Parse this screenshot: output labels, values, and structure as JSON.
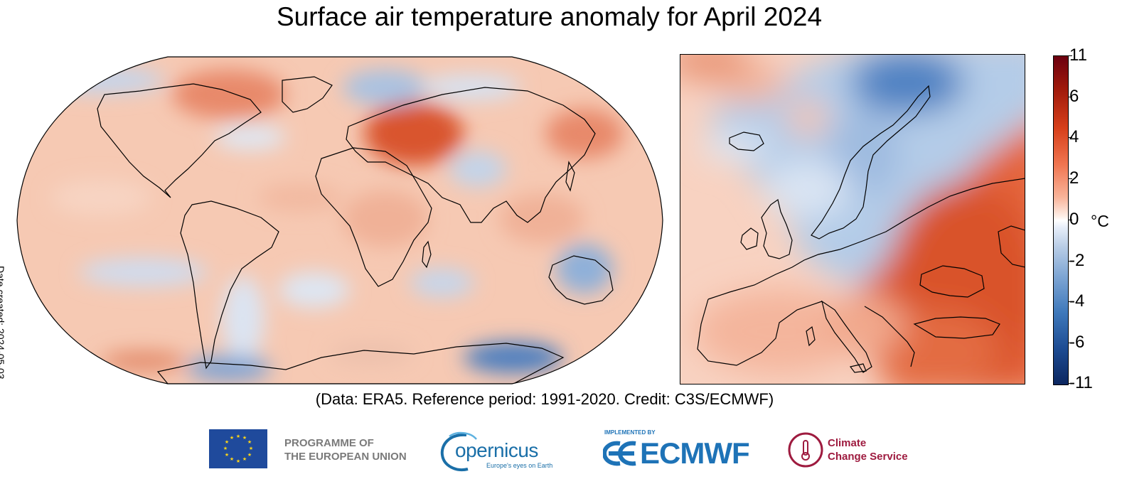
{
  "title": "Surface air temperature anomaly for April 2024",
  "credit": "(Data: ERA5.  Reference period: 1991-2020.  Credit: C3S/ECMWF)",
  "date_created": "Date created: 2024-05-03",
  "colorbar": {
    "unit": "°C",
    "ticks": [
      "11",
      "6",
      "4",
      "2",
      "0",
      "-2",
      "-4",
      "-6",
      "-11"
    ],
    "colors": {
      "warm_max": "#6b0010",
      "warm": "#d7401b",
      "neutral": "#ffffff",
      "cool": "#3f79bb",
      "cool_max": "#0b2660"
    }
  },
  "maps": {
    "world": {
      "projection": "Robinson (global)"
    },
    "europe": {
      "region": "Europe"
    }
  },
  "logos": {
    "eu": {
      "line1": "PROGRAMME OF",
      "line2": "THE EUROPEAN UNION"
    },
    "copernicus": {
      "name": "opernicus",
      "tagline": "Europe's eyes on Earth"
    },
    "ecmwf": {
      "implemented": "IMPLEMENTED BY",
      "name": "ECMWF"
    },
    "c3s": {
      "line1": "Climate",
      "line2": "Change Service"
    }
  }
}
